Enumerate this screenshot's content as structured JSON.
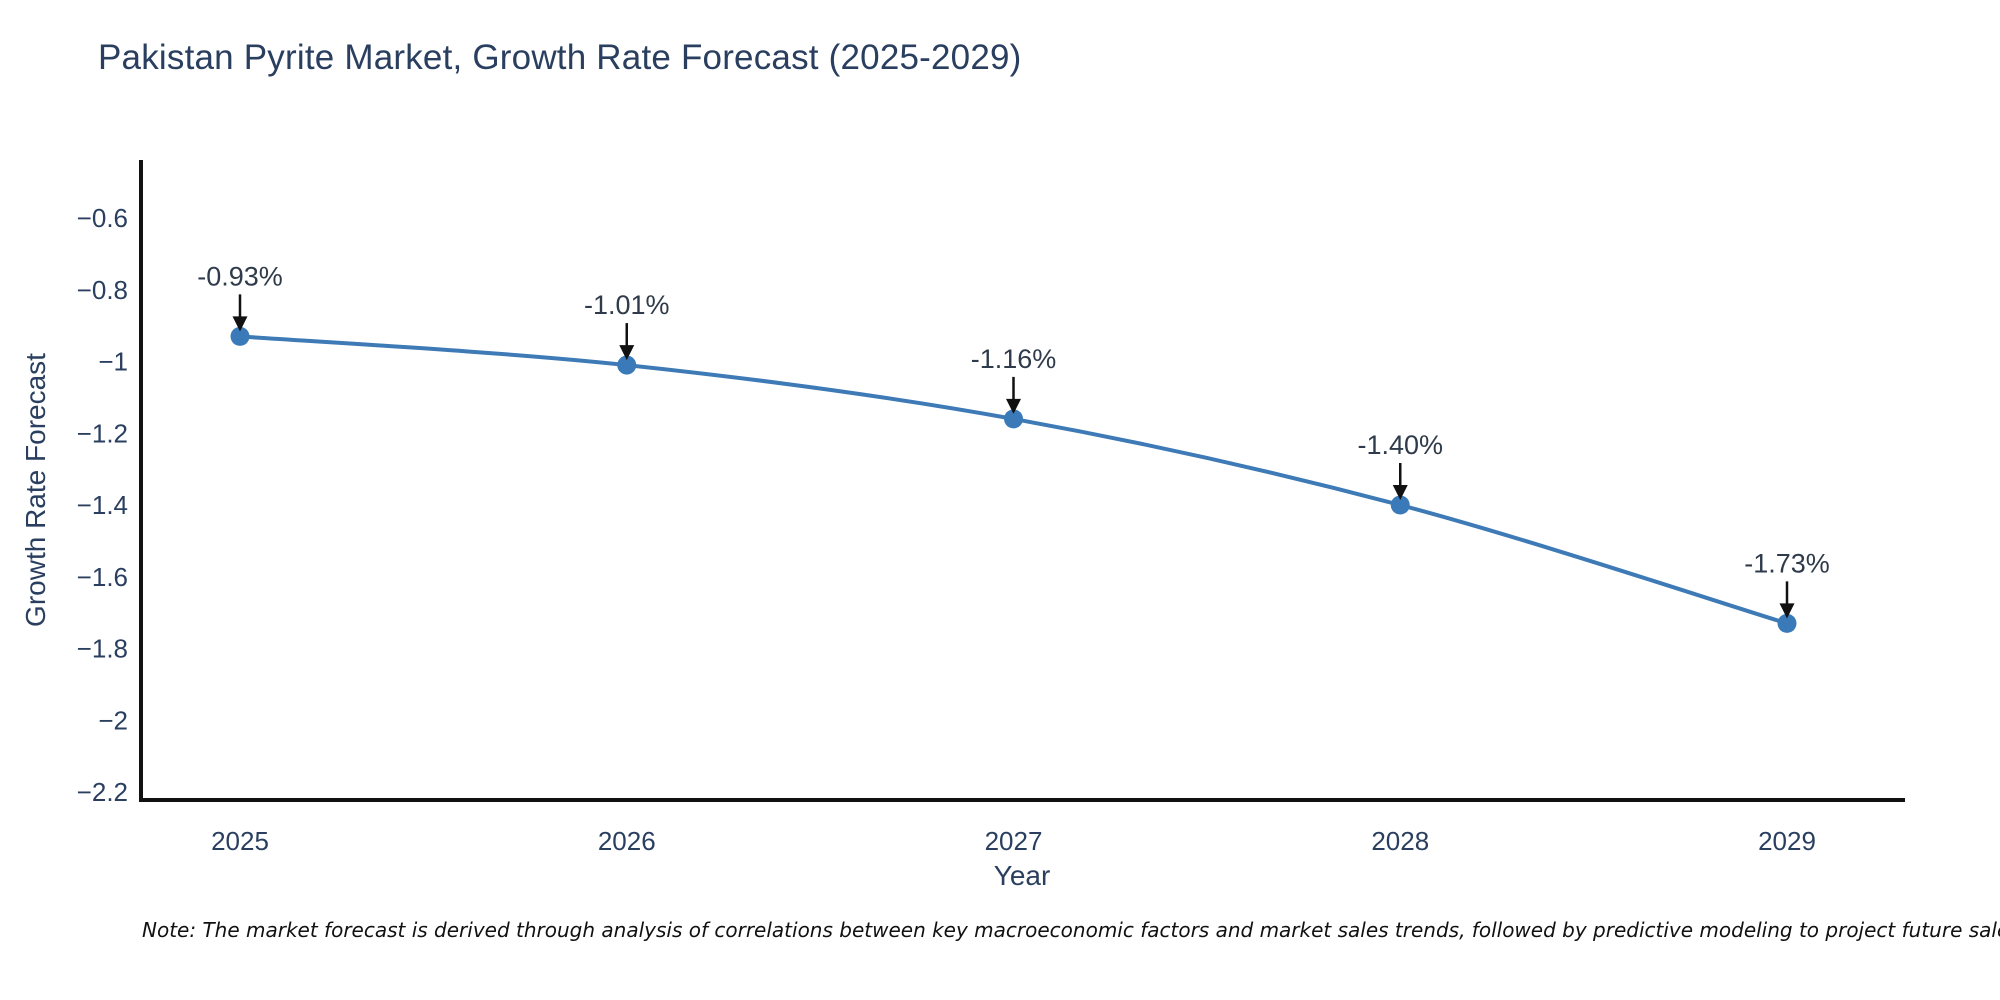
{
  "note": "Note: The market forecast is derived through analysis of correlations between key macroeconomic factors and market sales trends, followed by predictive modeling to project future sales.",
  "colors": {
    "line": "#3D7AB6",
    "marker": "#3A7AB8",
    "axis": "#111111",
    "arrow": "#111111",
    "title_text": "#2a3f5f",
    "tick_text": "#2a3f5f",
    "annotation_text": "#2f3b4a",
    "background": "#ffffff"
  },
  "chart_data": {
    "type": "line",
    "title": "Pakistan Pyrite Market, Growth Rate Forecast (2025-2029)",
    "xlabel": "Year",
    "ylabel": "Growth Rate Forecast",
    "x": [
      2025,
      2026,
      2027,
      2028,
      2029
    ],
    "values": [
      -0.93,
      -1.01,
      -1.16,
      -1.4,
      -1.73
    ],
    "point_labels": [
      "-0.93%",
      "-1.01%",
      "-1.16%",
      "-1.40%",
      "-1.73%"
    ],
    "series_name": "Growth Rate Forecast",
    "xticks": [
      "2025",
      "2026",
      "2027",
      "2028",
      "2029"
    ],
    "yticks": [
      -0.6,
      -0.8,
      -1.0,
      -1.2,
      -1.4,
      -1.6,
      -1.8,
      -2.0,
      -2.2
    ],
    "ytick_labels": [
      "−0.6",
      "−0.8",
      "−1",
      "−1.2",
      "−1.4",
      "−1.6",
      "−1.8",
      "−2",
      "−2.2"
    ],
    "ylim": [
      -2.22,
      -0.44
    ],
    "grid": false,
    "legend": false,
    "markers": true,
    "annotations_with_arrows": true
  }
}
